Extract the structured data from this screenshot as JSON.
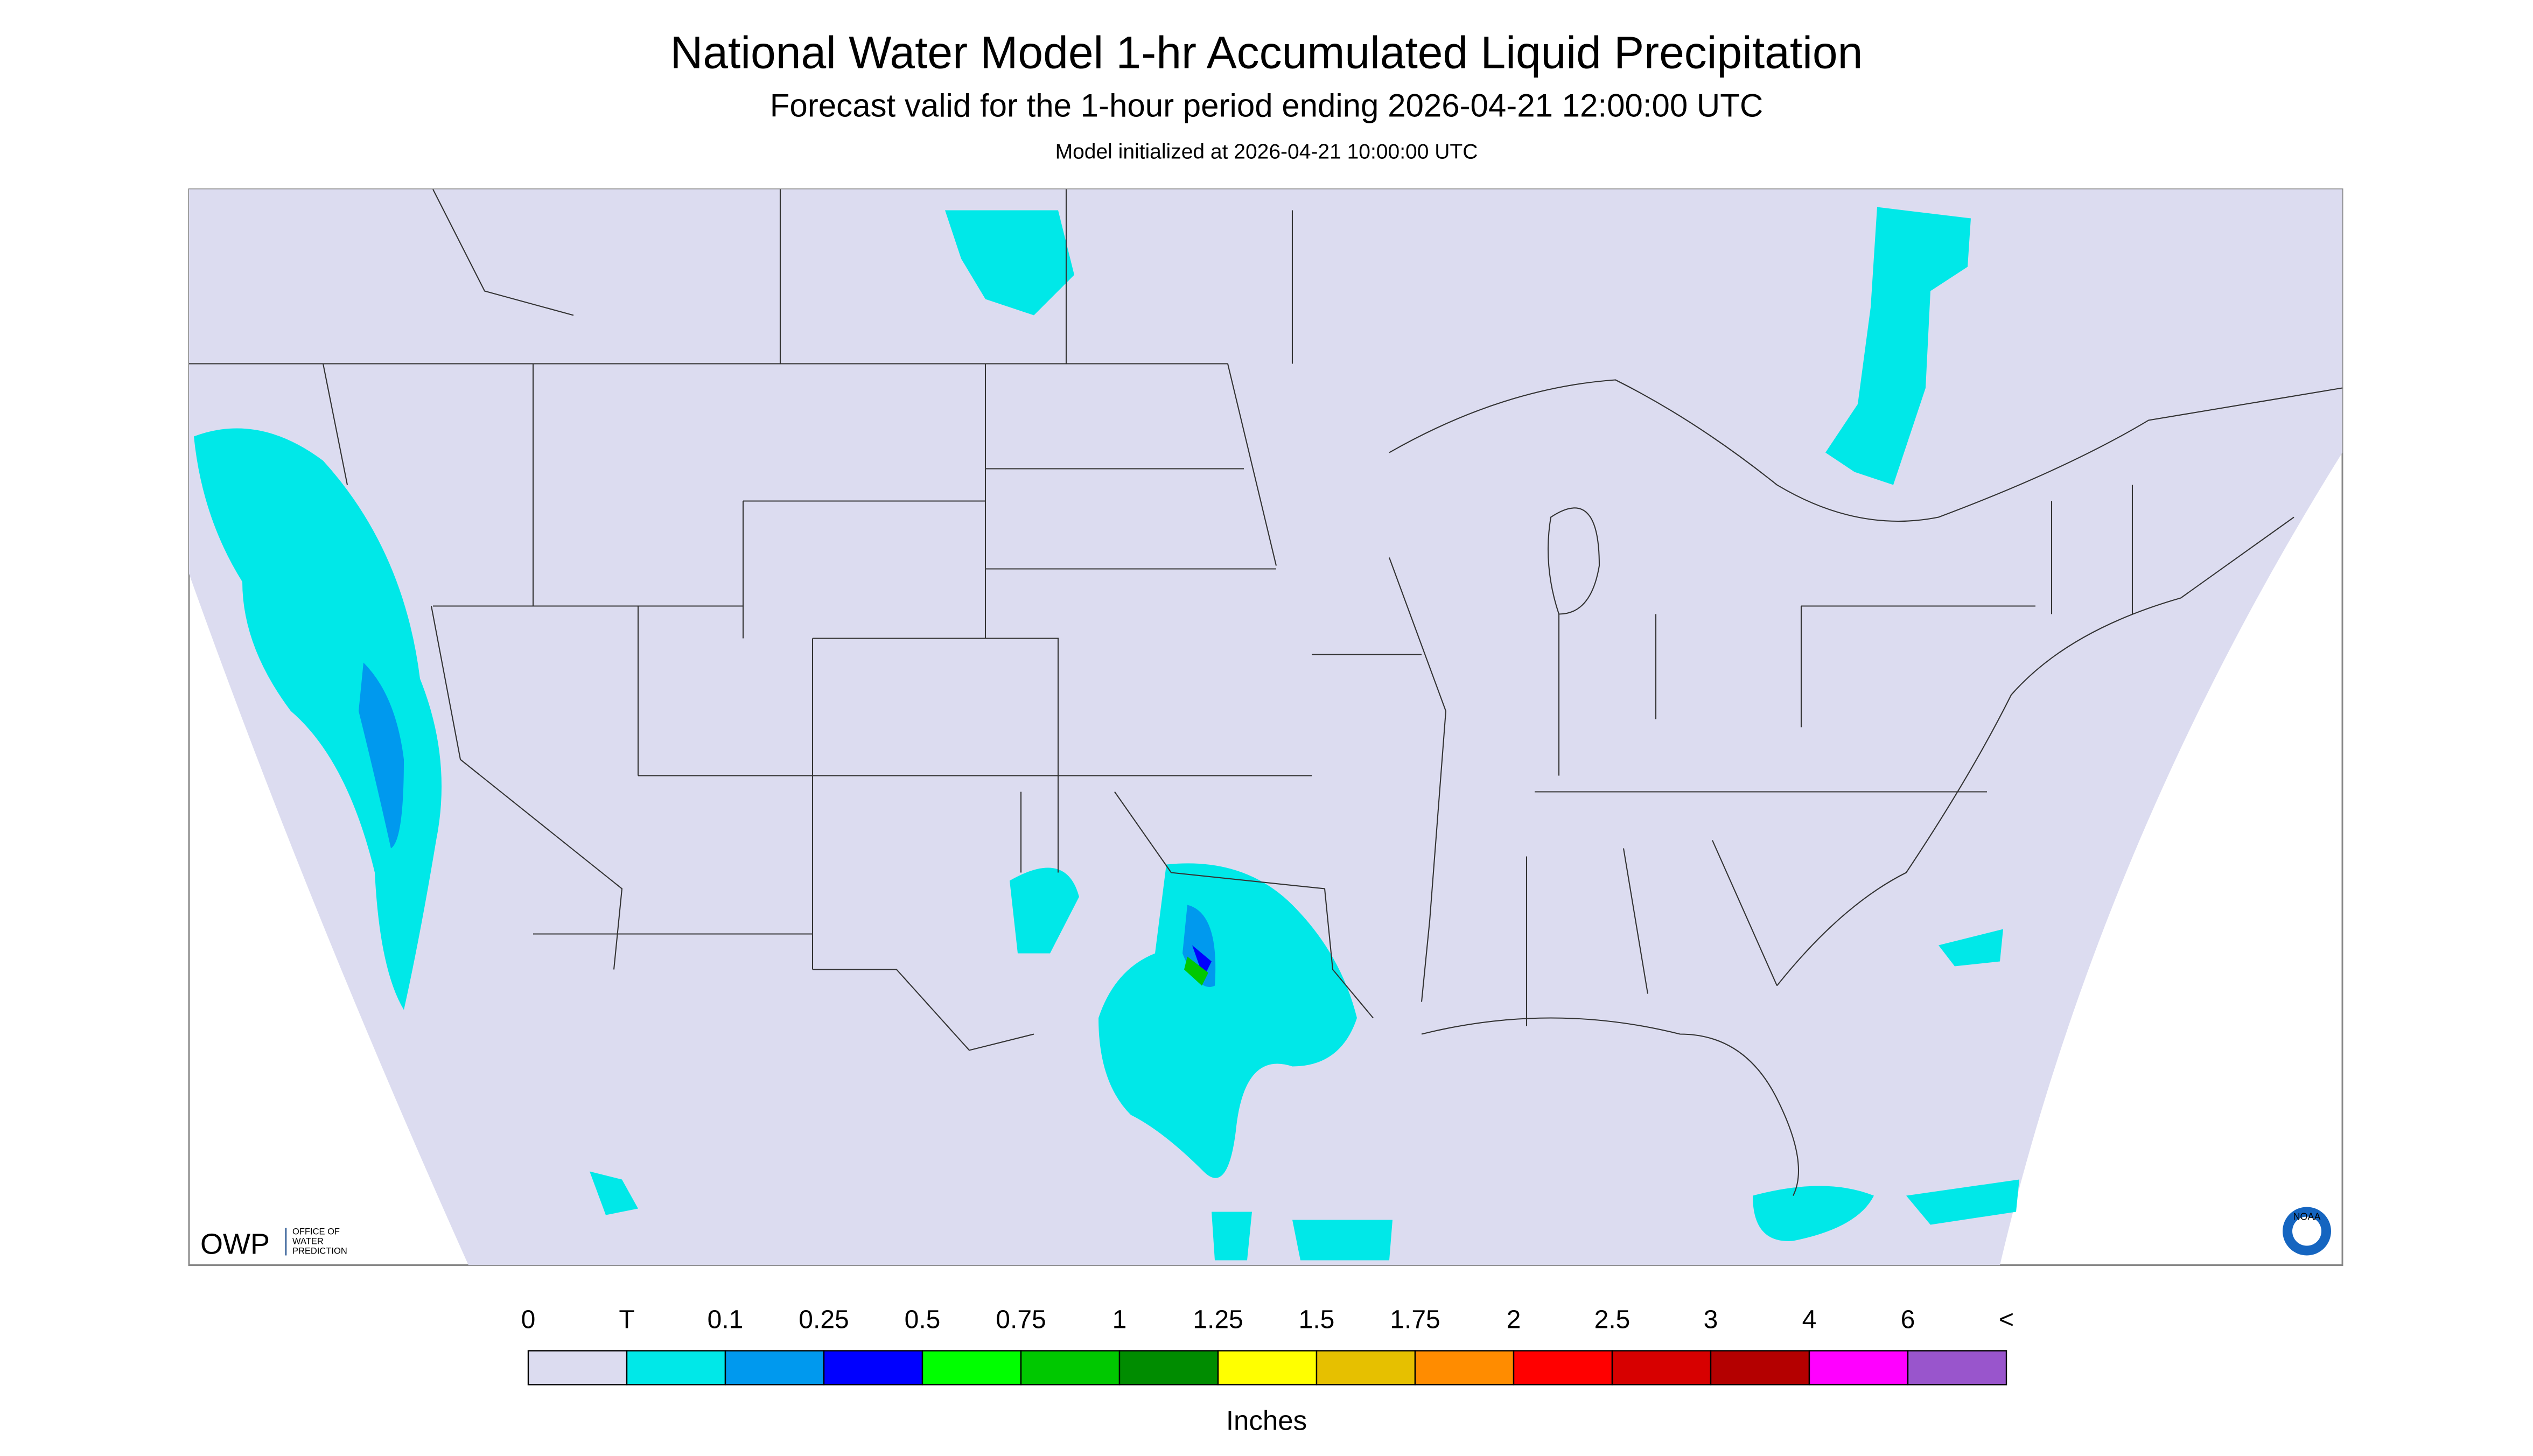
{
  "header": {
    "title": "National Water Model 1-hr Accumulated Liquid Precipitation",
    "subtitle": "Forecast valid for the 1-hour period ending 2026-04-21 12:00:00 UTC",
    "note": "Model initialized at 2026-04-21 10:00:00 UTC"
  },
  "map": {
    "background": "#dcdcf0",
    "precip_color": "#00e8e8"
  },
  "logo": {
    "owp": "OWP",
    "lines": [
      "OFFICE OF",
      "WATER",
      "PREDICTION"
    ],
    "noaa": "NOAA"
  },
  "legend": {
    "labels": [
      "0",
      "T",
      "0.1",
      "0.25",
      "0.5",
      "0.75",
      "1",
      "1.25",
      "1.5",
      "1.75",
      "2",
      "2.5",
      "3",
      "4",
      "6",
      "<"
    ],
    "colors": [
      "#dcdcf0",
      "#00e8e8",
      "#0099ee",
      "#0000ff",
      "#00ff00",
      "#00c800",
      "#008c00",
      "#ffff00",
      "#e6c000",
      "#ff8c00",
      "#ff0000",
      "#d70000",
      "#b40000",
      "#ff00ff",
      "#9955cc"
    ],
    "unit": "Inches"
  }
}
